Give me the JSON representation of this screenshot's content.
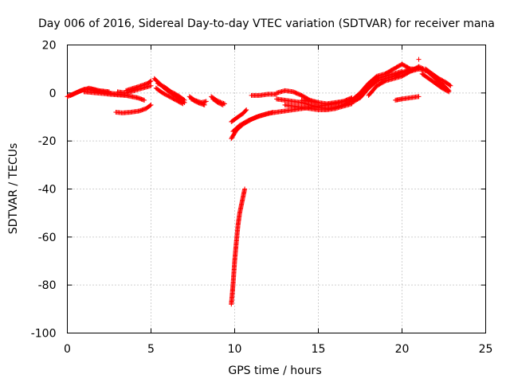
{
  "chart_data": {
    "type": "scatter",
    "title": "Day 006 of 2016, Sidereal Day-to-day VTEC variation (SDTVAR) for receiver mana",
    "xlabel": "GPS time / hours",
    "ylabel": "SDTVAR / TECUs",
    "xlim": [
      0,
      25
    ],
    "ylim": [
      -100,
      20
    ],
    "x_ticks": [
      {
        "value": 0,
        "label": "0"
      },
      {
        "value": 5,
        "label": "5"
      },
      {
        "value": 10,
        "label": "10"
      },
      {
        "value": 15,
        "label": "15"
      },
      {
        "value": 20,
        "label": "20"
      },
      {
        "value": 25,
        "label": "25"
      }
    ],
    "y_ticks": [
      {
        "value": 20,
        "label": "20"
      },
      {
        "value": 0,
        "label": "0"
      },
      {
        "value": -20,
        "label": "-20"
      },
      {
        "value": -40,
        "label": "-40"
      },
      {
        "value": -60,
        "label": "-60"
      },
      {
        "value": -80,
        "label": "-80"
      },
      {
        "value": -100,
        "label": "-100"
      }
    ],
    "grid": true,
    "marker": "+",
    "series": [
      {
        "name": "SDTVAR",
        "color": "#ff0000",
        "arcs": [
          [
            [
              0.0,
              -1.5
            ],
            [
              0.5,
              0.0
            ],
            [
              1.0,
              1.5
            ],
            [
              1.5,
              1.5
            ],
            [
              2.0,
              0.5
            ],
            [
              2.5,
              0.0
            ]
          ],
          [
            [
              0.2,
              -1.0
            ],
            [
              0.8,
              1.0
            ],
            [
              1.3,
              2.0
            ],
            [
              1.9,
              1.0
            ],
            [
              2.5,
              0.5
            ]
          ],
          [
            [
              1.0,
              0.5
            ],
            [
              1.8,
              0.0
            ],
            [
              2.5,
              -0.5
            ],
            [
              3.0,
              -0.8
            ],
            [
              3.5,
              -1.0
            ]
          ],
          [
            [
              1.5,
              1.0
            ],
            [
              2.5,
              0.0
            ],
            [
              3.5,
              -1.0
            ],
            [
              4.2,
              -2.0
            ],
            [
              4.6,
              -3.0
            ]
          ],
          [
            [
              3.0,
              0.5
            ],
            [
              3.5,
              0.0
            ],
            [
              4.0,
              1.0
            ],
            [
              4.5,
              2.0
            ],
            [
              5.0,
              3.0
            ]
          ],
          [
            [
              3.5,
              1.0
            ],
            [
              4.2,
              2.5
            ],
            [
              4.8,
              4.0
            ],
            [
              5.0,
              5.0
            ]
          ],
          [
            [
              2.9,
              -8.0
            ],
            [
              3.3,
              -8.3
            ],
            [
              3.8,
              -8.0
            ],
            [
              4.3,
              -7.5
            ],
            [
              4.7,
              -6.5
            ],
            [
              5.0,
              -5.0
            ]
          ],
          [
            [
              5.2,
              6.0
            ],
            [
              5.5,
              4.0
            ],
            [
              5.8,
              2.0
            ],
            [
              6.2,
              0.0
            ],
            [
              6.6,
              -2.0
            ],
            [
              7.0,
              -4.0
            ]
          ],
          [
            [
              5.4,
              4.0
            ],
            [
              5.8,
              2.5
            ],
            [
              6.2,
              0.5
            ],
            [
              6.6,
              -1.0
            ],
            [
              7.0,
              -3.0
            ]
          ],
          [
            [
              5.3,
              2.0
            ],
            [
              5.7,
              0.0
            ],
            [
              6.1,
              -1.5
            ],
            [
              6.5,
              -3.0
            ],
            [
              6.9,
              -4.5
            ]
          ],
          [
            [
              7.3,
              -1.5
            ],
            [
              7.6,
              -3.0
            ],
            [
              8.0,
              -4.0
            ],
            [
              8.3,
              -3.5
            ]
          ],
          [
            [
              7.4,
              -2.5
            ],
            [
              7.8,
              -4.0
            ],
            [
              8.2,
              -5.0
            ]
          ],
          [
            [
              8.6,
              -1.5
            ],
            [
              8.9,
              -3.0
            ],
            [
              9.2,
              -4.0
            ],
            [
              9.4,
              -4.5
            ]
          ],
          [
            [
              8.7,
              -2.5
            ],
            [
              9.0,
              -4.0
            ],
            [
              9.3,
              -5.0
            ]
          ],
          [
            [
              9.8,
              -19.0
            ],
            [
              10.1,
              -15.5
            ],
            [
              10.5,
              -13.0
            ],
            [
              11.0,
              -11.0
            ],
            [
              11.5,
              -9.5
            ],
            [
              12.0,
              -8.5
            ],
            [
              12.5,
              -8.0
            ],
            [
              13.0,
              -7.5
            ],
            [
              13.5,
              -7.0
            ],
            [
              14.0,
              -6.5
            ],
            [
              14.5,
              -6.0
            ],
            [
              15.0,
              -5.5
            ],
            [
              15.5,
              -5.0
            ],
            [
              16.0,
              -4.5
            ],
            [
              16.5,
              -3.5
            ],
            [
              17.0,
              -2.0
            ]
          ],
          [
            [
              9.9,
              -16.0
            ],
            [
              10.3,
              -13.5
            ],
            [
              10.8,
              -11.5
            ],
            [
              11.3,
              -10.0
            ],
            [
              11.8,
              -9.0
            ],
            [
              12.3,
              -8.0
            ]
          ],
          [
            [
              9.8,
              -12.0
            ],
            [
              10.2,
              -10.0
            ],
            [
              10.5,
              -8.5
            ],
            [
              10.7,
              -7.0
            ]
          ],
          [
            [
              9.8,
              -88.0
            ],
            [
              9.9,
              -80.0
            ],
            [
              10.0,
              -70.0
            ],
            [
              10.1,
              -62.0
            ],
            [
              10.2,
              -55.0
            ],
            [
              10.3,
              -50.0
            ],
            [
              10.45,
              -45.0
            ],
            [
              10.6,
              -40.0
            ]
          ],
          [
            [
              11.0,
              -1.0
            ],
            [
              11.5,
              -1.0
            ],
            [
              12.0,
              -0.5
            ],
            [
              12.5,
              -0.5
            ]
          ],
          [
            [
              12.5,
              0.0
            ],
            [
              13.0,
              1.0
            ],
            [
              13.5,
              0.5
            ],
            [
              14.0,
              -1.0
            ],
            [
              14.5,
              -3.0
            ],
            [
              15.0,
              -4.0
            ]
          ],
          [
            [
              12.5,
              -2.5
            ],
            [
              13.0,
              -3.0
            ],
            [
              13.5,
              -3.5
            ],
            [
              14.0,
              -4.0
            ],
            [
              14.5,
              -5.0
            ],
            [
              15.0,
              -6.0
            ],
            [
              15.5,
              -6.5
            ],
            [
              16.0,
              -6.0
            ],
            [
              16.5,
              -5.0
            ]
          ],
          [
            [
              13.0,
              -5.0
            ],
            [
              13.5,
              -5.5
            ],
            [
              14.0,
              -6.0
            ],
            [
              14.5,
              -6.5
            ],
            [
              15.0,
              -7.0
            ],
            [
              15.5,
              -7.0
            ],
            [
              16.0,
              -6.5
            ],
            [
              16.5,
              -5.5
            ],
            [
              17.0,
              -4.5
            ]
          ],
          [
            [
              14.0,
              -3.0
            ],
            [
              14.5,
              -3.5
            ],
            [
              15.0,
              -4.0
            ],
            [
              15.5,
              -4.5
            ],
            [
              16.0,
              -4.0
            ],
            [
              16.5,
              -3.5
            ]
          ],
          [
            [
              16.5,
              -5.0
            ],
            [
              17.0,
              -3.0
            ],
            [
              17.5,
              0.0
            ],
            [
              18.0,
              3.0
            ],
            [
              18.5,
              6.0
            ],
            [
              19.0,
              7.0
            ],
            [
              19.5,
              8.0
            ],
            [
              20.0,
              9.0
            ]
          ],
          [
            [
              17.0,
              -4.0
            ],
            [
              17.5,
              -2.0
            ],
            [
              18.0,
              2.0
            ],
            [
              18.5,
              5.0
            ],
            [
              19.0,
              6.0
            ],
            [
              19.5,
              7.0
            ],
            [
              20.0,
              8.5
            ],
            [
              20.5,
              10.0
            ],
            [
              21.0,
              10.0
            ]
          ],
          [
            [
              17.5,
              0.0
            ],
            [
              18.0,
              4.0
            ],
            [
              18.5,
              7.0
            ],
            [
              19.0,
              8.0
            ],
            [
              19.5,
              10.0
            ],
            [
              20.0,
              12.0
            ],
            [
              20.5,
              10.0
            ]
          ],
          [
            [
              18.0,
              -1.0
            ],
            [
              18.5,
              3.0
            ],
            [
              19.0,
              5.0
            ],
            [
              19.5,
              6.0
            ],
            [
              20.0,
              7.0
            ],
            [
              20.5,
              9.0
            ],
            [
              21.0,
              11.0
            ],
            [
              21.3,
              10.0
            ]
          ],
          [
            [
              20.5,
              9.0
            ],
            [
              21.0,
              10.0
            ],
            [
              21.5,
              9.0
            ],
            [
              22.0,
              6.0
            ],
            [
              22.5,
              3.0
            ],
            [
              22.8,
              1.0
            ]
          ],
          [
            [
              21.2,
              8.0
            ],
            [
              21.6,
              6.0
            ],
            [
              22.0,
              4.0
            ],
            [
              22.4,
              2.0
            ],
            [
              22.8,
              0.5
            ]
          ],
          [
            [
              21.4,
              10.0
            ],
            [
              21.8,
              8.0
            ],
            [
              22.2,
              6.0
            ],
            [
              22.6,
              4.5
            ],
            [
              22.9,
              3.0
            ]
          ],
          [
            [
              21.0,
              14.0
            ]
          ],
          [
            [
              19.6,
              -3.0
            ],
            [
              20.0,
              -2.5
            ],
            [
              20.5,
              -2.0
            ],
            [
              21.0,
              -1.5
            ]
          ]
        ]
      }
    ]
  }
}
